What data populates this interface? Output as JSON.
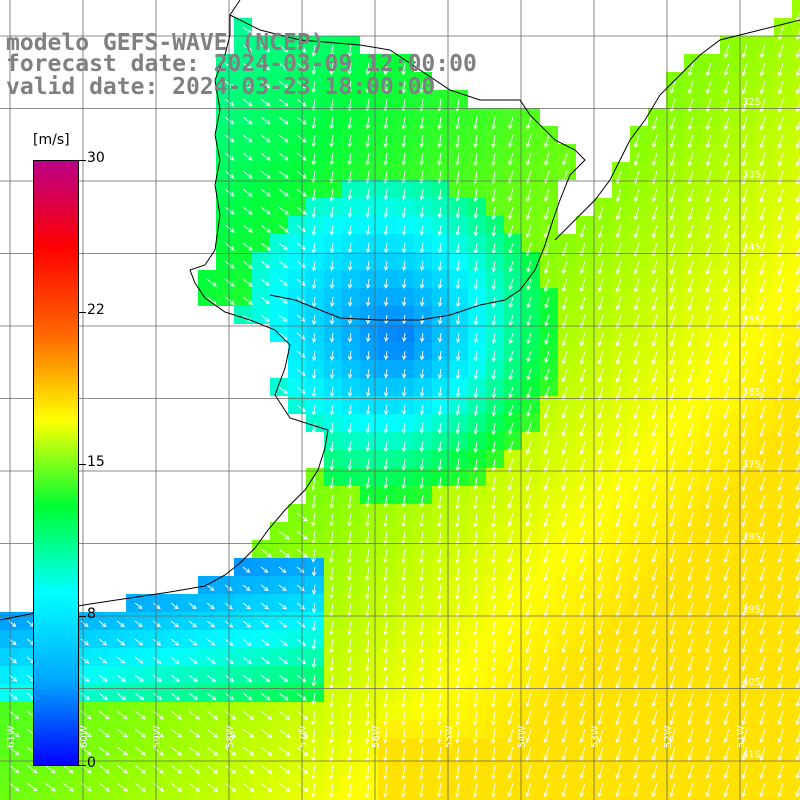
{
  "header": {
    "line1": "modelo GEFS-WAVE (NCEP)",
    "line2": "forecast date: 2024-03-09 12:00:00",
    "line3": "valid date: 2024-03-23 18:00:00"
  },
  "legend": {
    "unit": "[m/s]",
    "ticks": [
      "30",
      "22",
      "15",
      "8",
      "0"
    ],
    "colors": [
      "#0000ff",
      "#00aaff",
      "#00ffff",
      "#00ff33",
      "#ffff00",
      "#ff6600",
      "#ff0000",
      "#bb0088"
    ]
  },
  "axes": {
    "longitude_labels": [
      "61W",
      "60W",
      "59W",
      "58W",
      "57W",
      "56W",
      "55W",
      "54W",
      "53W",
      "52W",
      "51W"
    ],
    "latitude_labels": [
      "32S",
      "33S",
      "34S",
      "35S",
      "36S",
      "37S",
      "38S",
      "39S",
      "40S",
      "41S"
    ]
  }
}
